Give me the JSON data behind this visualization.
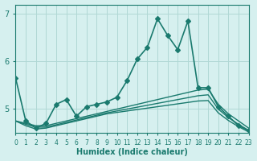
{
  "xlabel": "Humidex (Indice chaleur)",
  "ylabel": "",
  "xlim": [
    0,
    23
  ],
  "ylim": [
    4.5,
    7.2
  ],
  "yticks": [
    5,
    6,
    7
  ],
  "xticks": [
    0,
    1,
    2,
    3,
    4,
    5,
    6,
    7,
    8,
    9,
    10,
    11,
    12,
    13,
    14,
    15,
    16,
    17,
    18,
    19,
    20,
    21,
    22,
    23
  ],
  "bg_color": "#d6f0ef",
  "line_color": "#1a7a6e",
  "grid_color": "#b0d8d5",
  "lines": [
    {
      "x": [
        0,
        1,
        2,
        3,
        4,
        5,
        6,
        7,
        8,
        9,
        10,
        11,
        12,
        13,
        14,
        15,
        16,
        17,
        18,
        19,
        20,
        21,
        22,
        23
      ],
      "y": [
        5.65,
        4.75,
        4.6,
        4.7,
        5.1,
        5.2,
        4.85,
        5.05,
        5.1,
        5.15,
        5.25,
        5.6,
        6.05,
        6.3,
        6.9,
        6.55,
        6.25,
        6.85,
        5.45,
        5.45,
        5.05,
        4.85,
        4.65,
        4.55
      ],
      "marker": "D",
      "markersize": 3,
      "lw": 1.2
    },
    {
      "x": [
        0,
        1,
        2,
        3,
        4,
        5,
        6,
        7,
        8,
        9,
        10,
        11,
        12,
        13,
        14,
        15,
        16,
        17,
        18,
        19,
        20,
        21,
        22,
        23
      ],
      "y": [
        4.75,
        4.7,
        4.65,
        4.65,
        4.7,
        4.75,
        4.8,
        4.85,
        4.9,
        4.95,
        5.0,
        5.05,
        5.1,
        5.15,
        5.2,
        5.25,
        5.3,
        5.35,
        5.4,
        5.42,
        5.1,
        4.9,
        4.75,
        4.6
      ],
      "marker": null,
      "markersize": 0,
      "lw": 1.0
    },
    {
      "x": [
        0,
        1,
        2,
        3,
        4,
        5,
        6,
        7,
        8,
        9,
        10,
        11,
        12,
        13,
        14,
        15,
        16,
        17,
        18,
        19,
        20,
        21,
        22,
        23
      ],
      "y": [
        4.75,
        4.68,
        4.62,
        4.62,
        4.67,
        4.72,
        4.77,
        4.82,
        4.87,
        4.92,
        4.96,
        5.0,
        5.04,
        5.08,
        5.12,
        5.16,
        5.2,
        5.24,
        5.28,
        5.3,
        5.0,
        4.82,
        4.68,
        4.55
      ],
      "marker": null,
      "markersize": 0,
      "lw": 1.0
    },
    {
      "x": [
        0,
        1,
        2,
        3,
        4,
        5,
        6,
        7,
        8,
        9,
        10,
        11,
        12,
        13,
        14,
        15,
        16,
        17,
        18,
        19,
        20,
        21,
        22,
        23
      ],
      "y": [
        4.75,
        4.65,
        4.58,
        4.6,
        4.65,
        4.7,
        4.75,
        4.8,
        4.85,
        4.9,
        4.93,
        4.96,
        4.99,
        5.02,
        5.05,
        5.08,
        5.11,
        5.14,
        5.17,
        5.18,
        4.92,
        4.76,
        4.63,
        4.52
      ],
      "marker": null,
      "markersize": 0,
      "lw": 1.0
    }
  ]
}
